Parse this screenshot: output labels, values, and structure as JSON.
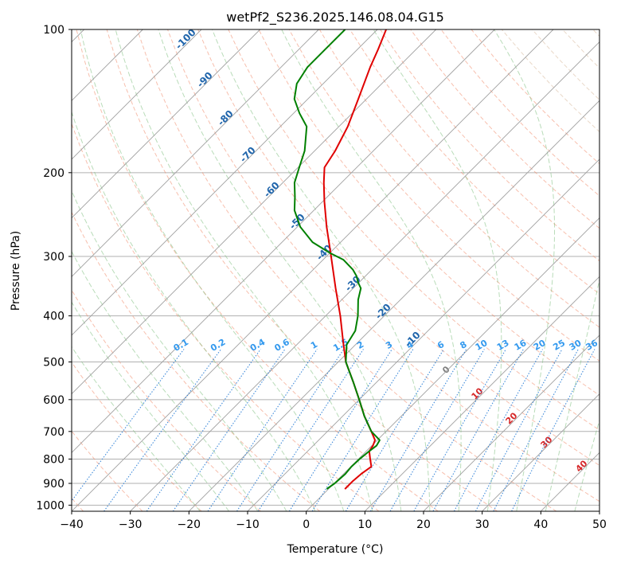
{
  "chart_data": {
    "type": "skew-t",
    "title": "wetPf2_S236.2025.146.08.04.G15",
    "xlabel": "Temperature (°C)",
    "ylabel": "Pressure (hPa)",
    "xlim": [
      -40,
      50
    ],
    "ylim": [
      1030,
      100
    ],
    "x_ticks": [
      -40,
      -30,
      -20,
      -10,
      0,
      10,
      20,
      30,
      40,
      50
    ],
    "y_ticks": [
      100,
      200,
      300,
      400,
      500,
      600,
      700,
      800,
      900,
      1000
    ],
    "isotherm_labels": [
      -100,
      -90,
      -80,
      -70,
      -60,
      -50,
      -40,
      -30,
      -20,
      -10
    ],
    "mixing_ratio_labels": [
      0.1,
      0.2,
      0.4,
      0.6,
      1,
      1.5,
      2,
      3,
      4,
      6,
      8,
      10,
      13,
      16,
      20,
      25,
      30,
      36
    ],
    "moist_adiabat_labels": [
      0,
      10,
      20,
      30,
      40
    ],
    "series": [
      {
        "name": "temperature",
        "color": "#e00000",
        "points": [
          {
            "p": 925,
            "t": 2.8
          },
          {
            "p": 890,
            "t": 2.8
          },
          {
            "p": 860,
            "t": 3.0
          },
          {
            "p": 830,
            "t": 3.5
          },
          {
            "p": 800,
            "t": 2.0
          },
          {
            "p": 770,
            "t": 0.5
          },
          {
            "p": 750,
            "t": 0.2
          },
          {
            "p": 730,
            "t": -0.4
          },
          {
            "p": 700,
            "t": -2.5
          },
          {
            "p": 650,
            "t": -6.3
          },
          {
            "p": 600,
            "t": -10.0
          },
          {
            "p": 550,
            "t": -14.1
          },
          {
            "p": 500,
            "t": -18.7
          },
          {
            "p": 450,
            "t": -22.9
          },
          {
            "p": 400,
            "t": -27.5
          },
          {
            "p": 350,
            "t": -33.0
          },
          {
            "p": 300,
            "t": -39.2
          },
          {
            "p": 260,
            "t": -45.0
          },
          {
            "p": 230,
            "t": -49.7
          },
          {
            "p": 210,
            "t": -53.0
          },
          {
            "p": 195,
            "t": -55.5
          },
          {
            "p": 180,
            "t": -56.5
          },
          {
            "p": 160,
            "t": -58.5
          },
          {
            "p": 140,
            "t": -61.4
          },
          {
            "p": 120,
            "t": -64.8
          },
          {
            "p": 110,
            "t": -66.5
          },
          {
            "p": 100,
            "t": -68.5
          }
        ]
      },
      {
        "name": "dewpoint",
        "color": "#008000",
        "points": [
          {
            "p": 925,
            "t": -0.3
          },
          {
            "p": 900,
            "t": 0.1
          },
          {
            "p": 860,
            "t": 0.3
          },
          {
            "p": 830,
            "t": 0.1
          },
          {
            "p": 800,
            "t": 0.2
          },
          {
            "p": 770,
            "t": 0.5
          },
          {
            "p": 750,
            "t": 0.8
          },
          {
            "p": 730,
            "t": 0.4
          },
          {
            "p": 700,
            "t": -2.5
          },
          {
            "p": 650,
            "t": -6.3
          },
          {
            "p": 600,
            "t": -10.0
          },
          {
            "p": 550,
            "t": -14.1
          },
          {
            "p": 500,
            "t": -18.7
          },
          {
            "p": 460,
            "t": -21.5
          },
          {
            "p": 430,
            "t": -22.4
          },
          {
            "p": 400,
            "t": -24.5
          },
          {
            "p": 370,
            "t": -27.2
          },
          {
            "p": 350,
            "t": -28.7
          },
          {
            "p": 340,
            "t": -30.2
          },
          {
            "p": 330,
            "t": -31.5
          },
          {
            "p": 320,
            "t": -33.2
          },
          {
            "p": 305,
            "t": -36.5
          },
          {
            "p": 295,
            "t": -40.0
          },
          {
            "p": 280,
            "t": -44.8
          },
          {
            "p": 260,
            "t": -49.5
          },
          {
            "p": 240,
            "t": -53.3
          },
          {
            "p": 225,
            "t": -55.5
          },
          {
            "p": 210,
            "t": -58.0
          },
          {
            "p": 195,
            "t": -59.8
          },
          {
            "p": 180,
            "t": -61.7
          },
          {
            "p": 160,
            "t": -65.5
          },
          {
            "p": 150,
            "t": -69.0
          },
          {
            "p": 140,
            "t": -72.3
          },
          {
            "p": 130,
            "t": -74.5
          },
          {
            "p": 120,
            "t": -75.5
          },
          {
            "p": 110,
            "t": -75.5
          },
          {
            "p": 100,
            "t": -75.5
          }
        ]
      }
    ]
  }
}
